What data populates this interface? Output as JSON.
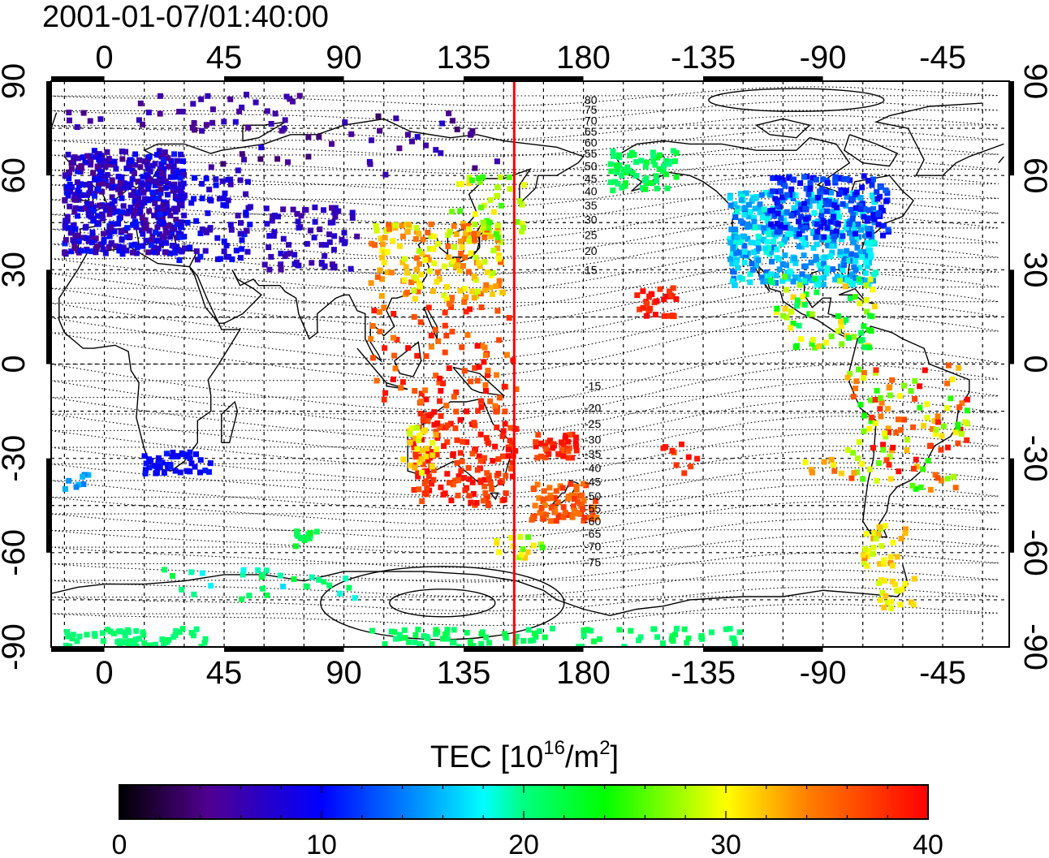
{
  "title": "2001-01-07/01:40:00",
  "map": {
    "x_ticks": [
      "0",
      "45",
      "90",
      "135",
      "180",
      "-135",
      "-90",
      "-45"
    ],
    "y_ticks": [
      "90",
      "60",
      "30",
      "0",
      "-30",
      "-60",
      "-90"
    ],
    "lon_range": [
      -20,
      340
    ],
    "lat_range": [
      -90,
      90
    ],
    "grid": "dashed, 15 degree spacing",
    "terminator_longitude": 154
  },
  "contour_labels": [
    "80",
    "75",
    "70",
    "65",
    "60",
    "55",
    "50",
    "45",
    "40",
    "35",
    "30",
    "25",
    "20",
    "15",
    "-15",
    "-20",
    "-25",
    "-30",
    "-35",
    "-40",
    "-45",
    "-50",
    "-55",
    "-60",
    "-65",
    "-70",
    "-75"
  ],
  "colorbar": {
    "title_prefix": "TEC  [10",
    "title_exp1": "16",
    "title_mid": "/m",
    "title_exp2": "2",
    "title_suffix": "]",
    "min": 0,
    "max": 40,
    "tick_labels": [
      "0",
      "10",
      "20",
      "30",
      "40"
    ],
    "colormap": [
      "#000000",
      "#500090",
      "#0000ff",
      "#00a0ff",
      "#00ffff",
      "#00ff80",
      "#00ff00",
      "#ffff00",
      "#ff8000",
      "#ff0000"
    ]
  },
  "colors": {
    "terminator": "#ff0000",
    "coastline": "#000000",
    "grid": "#000000"
  }
}
